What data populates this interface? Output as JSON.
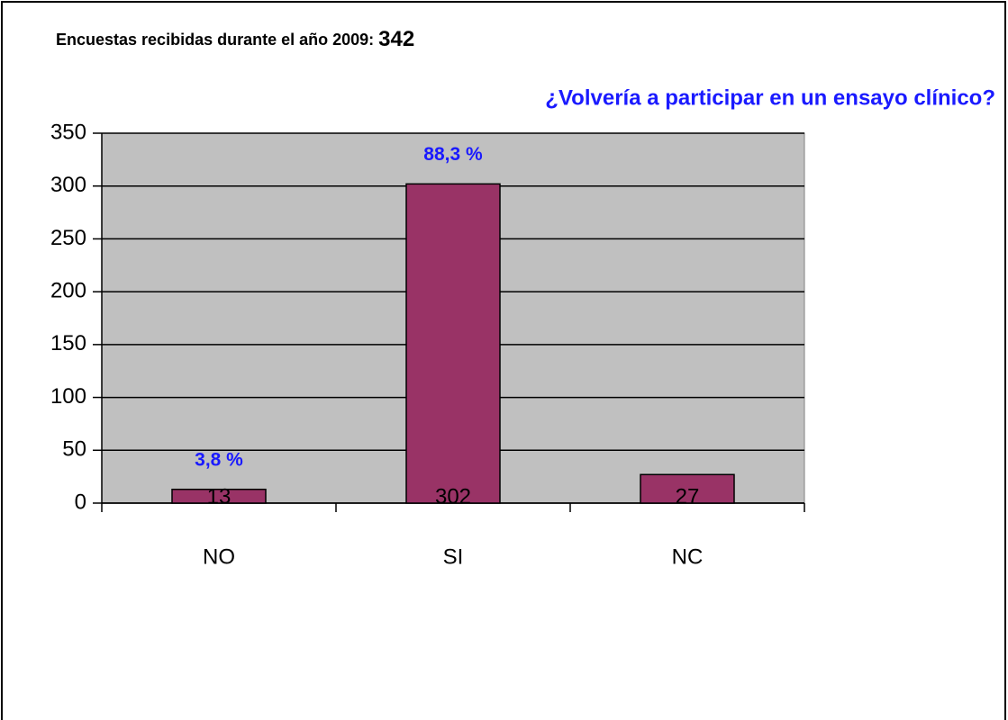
{
  "chart_data": {
    "type": "bar",
    "title": "Encuestas recibidas durante el año 2009:",
    "total": 342,
    "subtitle": "¿Volvería a participar en un ensayo clínico?",
    "categories": [
      "NO",
      "SI",
      "NC"
    ],
    "values": [
      13,
      302,
      27
    ],
    "percent_labels": [
      "3,8 %",
      "88,3 %",
      null
    ],
    "color": "#993366",
    "ylim": [
      0,
      350
    ],
    "yticks": [
      0,
      50,
      100,
      150,
      200,
      250,
      300,
      350
    ],
    "grid": true
  }
}
